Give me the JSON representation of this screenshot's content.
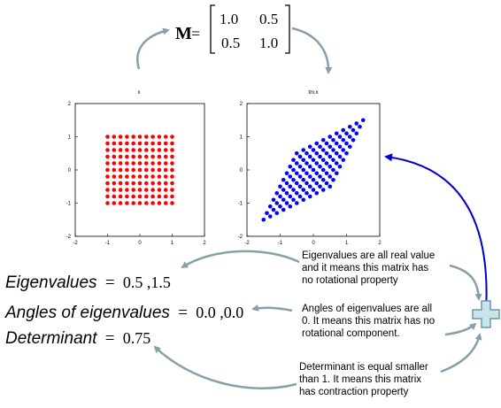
{
  "matrix": {
    "name": "M",
    "equals": "=",
    "rows": [
      [
        "1.0",
        "0.5"
      ],
      [
        "0.5",
        "1.0"
      ]
    ]
  },
  "plots": [
    {
      "title": "x",
      "ticks_x": [
        "-2",
        "-1",
        "0",
        "1",
        "2"
      ],
      "ticks_y": [
        "2",
        "1",
        "0",
        "-1",
        "-2"
      ],
      "point_color": "#ff0000",
      "grid_points": 11,
      "transform": [
        [
          1.0,
          0.0
        ],
        [
          0.0,
          1.0
        ]
      ]
    },
    {
      "title": "tm.x",
      "ticks_x": [
        "-2",
        "-1",
        "0",
        "1",
        "2"
      ],
      "ticks_y": [
        "2",
        "1",
        "0",
        "-1",
        "-2"
      ],
      "point_color": "#0000ff",
      "grid_points": 11,
      "transform": [
        [
          1.0,
          0.5
        ],
        [
          0.5,
          1.0
        ]
      ]
    }
  ],
  "equations": {
    "eigenvalues": {
      "label": "Eigenvalues",
      "equals": "=",
      "value": "0.5 ,1.5"
    },
    "angles": {
      "label": "Angles of eigenvalues",
      "equals": "=",
      "value": "0.0 ,0.0"
    },
    "determinant": {
      "label": "Determinant",
      "equals": "=",
      "value": "0.75"
    }
  },
  "notes": {
    "eigen": [
      "Eigenvalues are all real value",
      "and it means this matrix has",
      "no rotational property"
    ],
    "angles": [
      "Angles of eigenvalues are all",
      "0. It means this matrix has no",
      "rotational component."
    ],
    "determinant": [
      "Determinant is equal smaller",
      "than 1. It means this matrix",
      "has contraction property"
    ]
  },
  "colors": {
    "arrow_gray": "#86a0a8",
    "arrow_blue": "#0000cc",
    "plus_fill": "#c9e4ec",
    "plus_stroke": "#6f97a4"
  }
}
